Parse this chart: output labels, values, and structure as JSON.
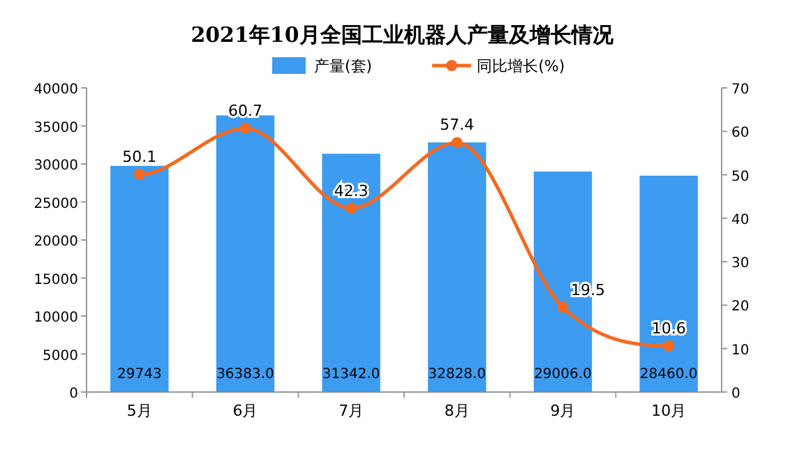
{
  "chart_data": {
    "type": "bar",
    "title": "2021年10月全国工业机器人产量及增长情况",
    "categories": [
      "5月",
      "6月",
      "7月",
      "8月",
      "9月",
      "10月"
    ],
    "series": [
      {
        "name": "产量(套)",
        "color": "#3d9bf0",
        "values": [
          29743,
          36383,
          31342,
          32828,
          29006,
          28460
        ],
        "value_labels": [
          "29743",
          "36383.0",
          "31342.0",
          "32828.0",
          "29006.0",
          "28460.0"
        ]
      },
      {
        "name": "同比增长(%)",
        "type": "line",
        "axis": "y2",
        "color": "#f26a21",
        "marker": "circle",
        "values": [
          50.1,
          60.7,
          42.3,
          57.4,
          19.5,
          10.6
        ],
        "value_labels": [
          "50.1",
          "60.7",
          "42.3",
          "57.4",
          "19.5",
          "10.6"
        ]
      }
    ],
    "ylim": [
      0,
      40000
    ],
    "yticks": [
      0,
      5000,
      10000,
      15000,
      20000,
      25000,
      30000,
      35000,
      40000
    ],
    "y2lim": [
      0,
      70
    ],
    "y2ticks": [
      0,
      10,
      20,
      30,
      40,
      50,
      60,
      70
    ],
    "legend": "top",
    "grid": false
  }
}
